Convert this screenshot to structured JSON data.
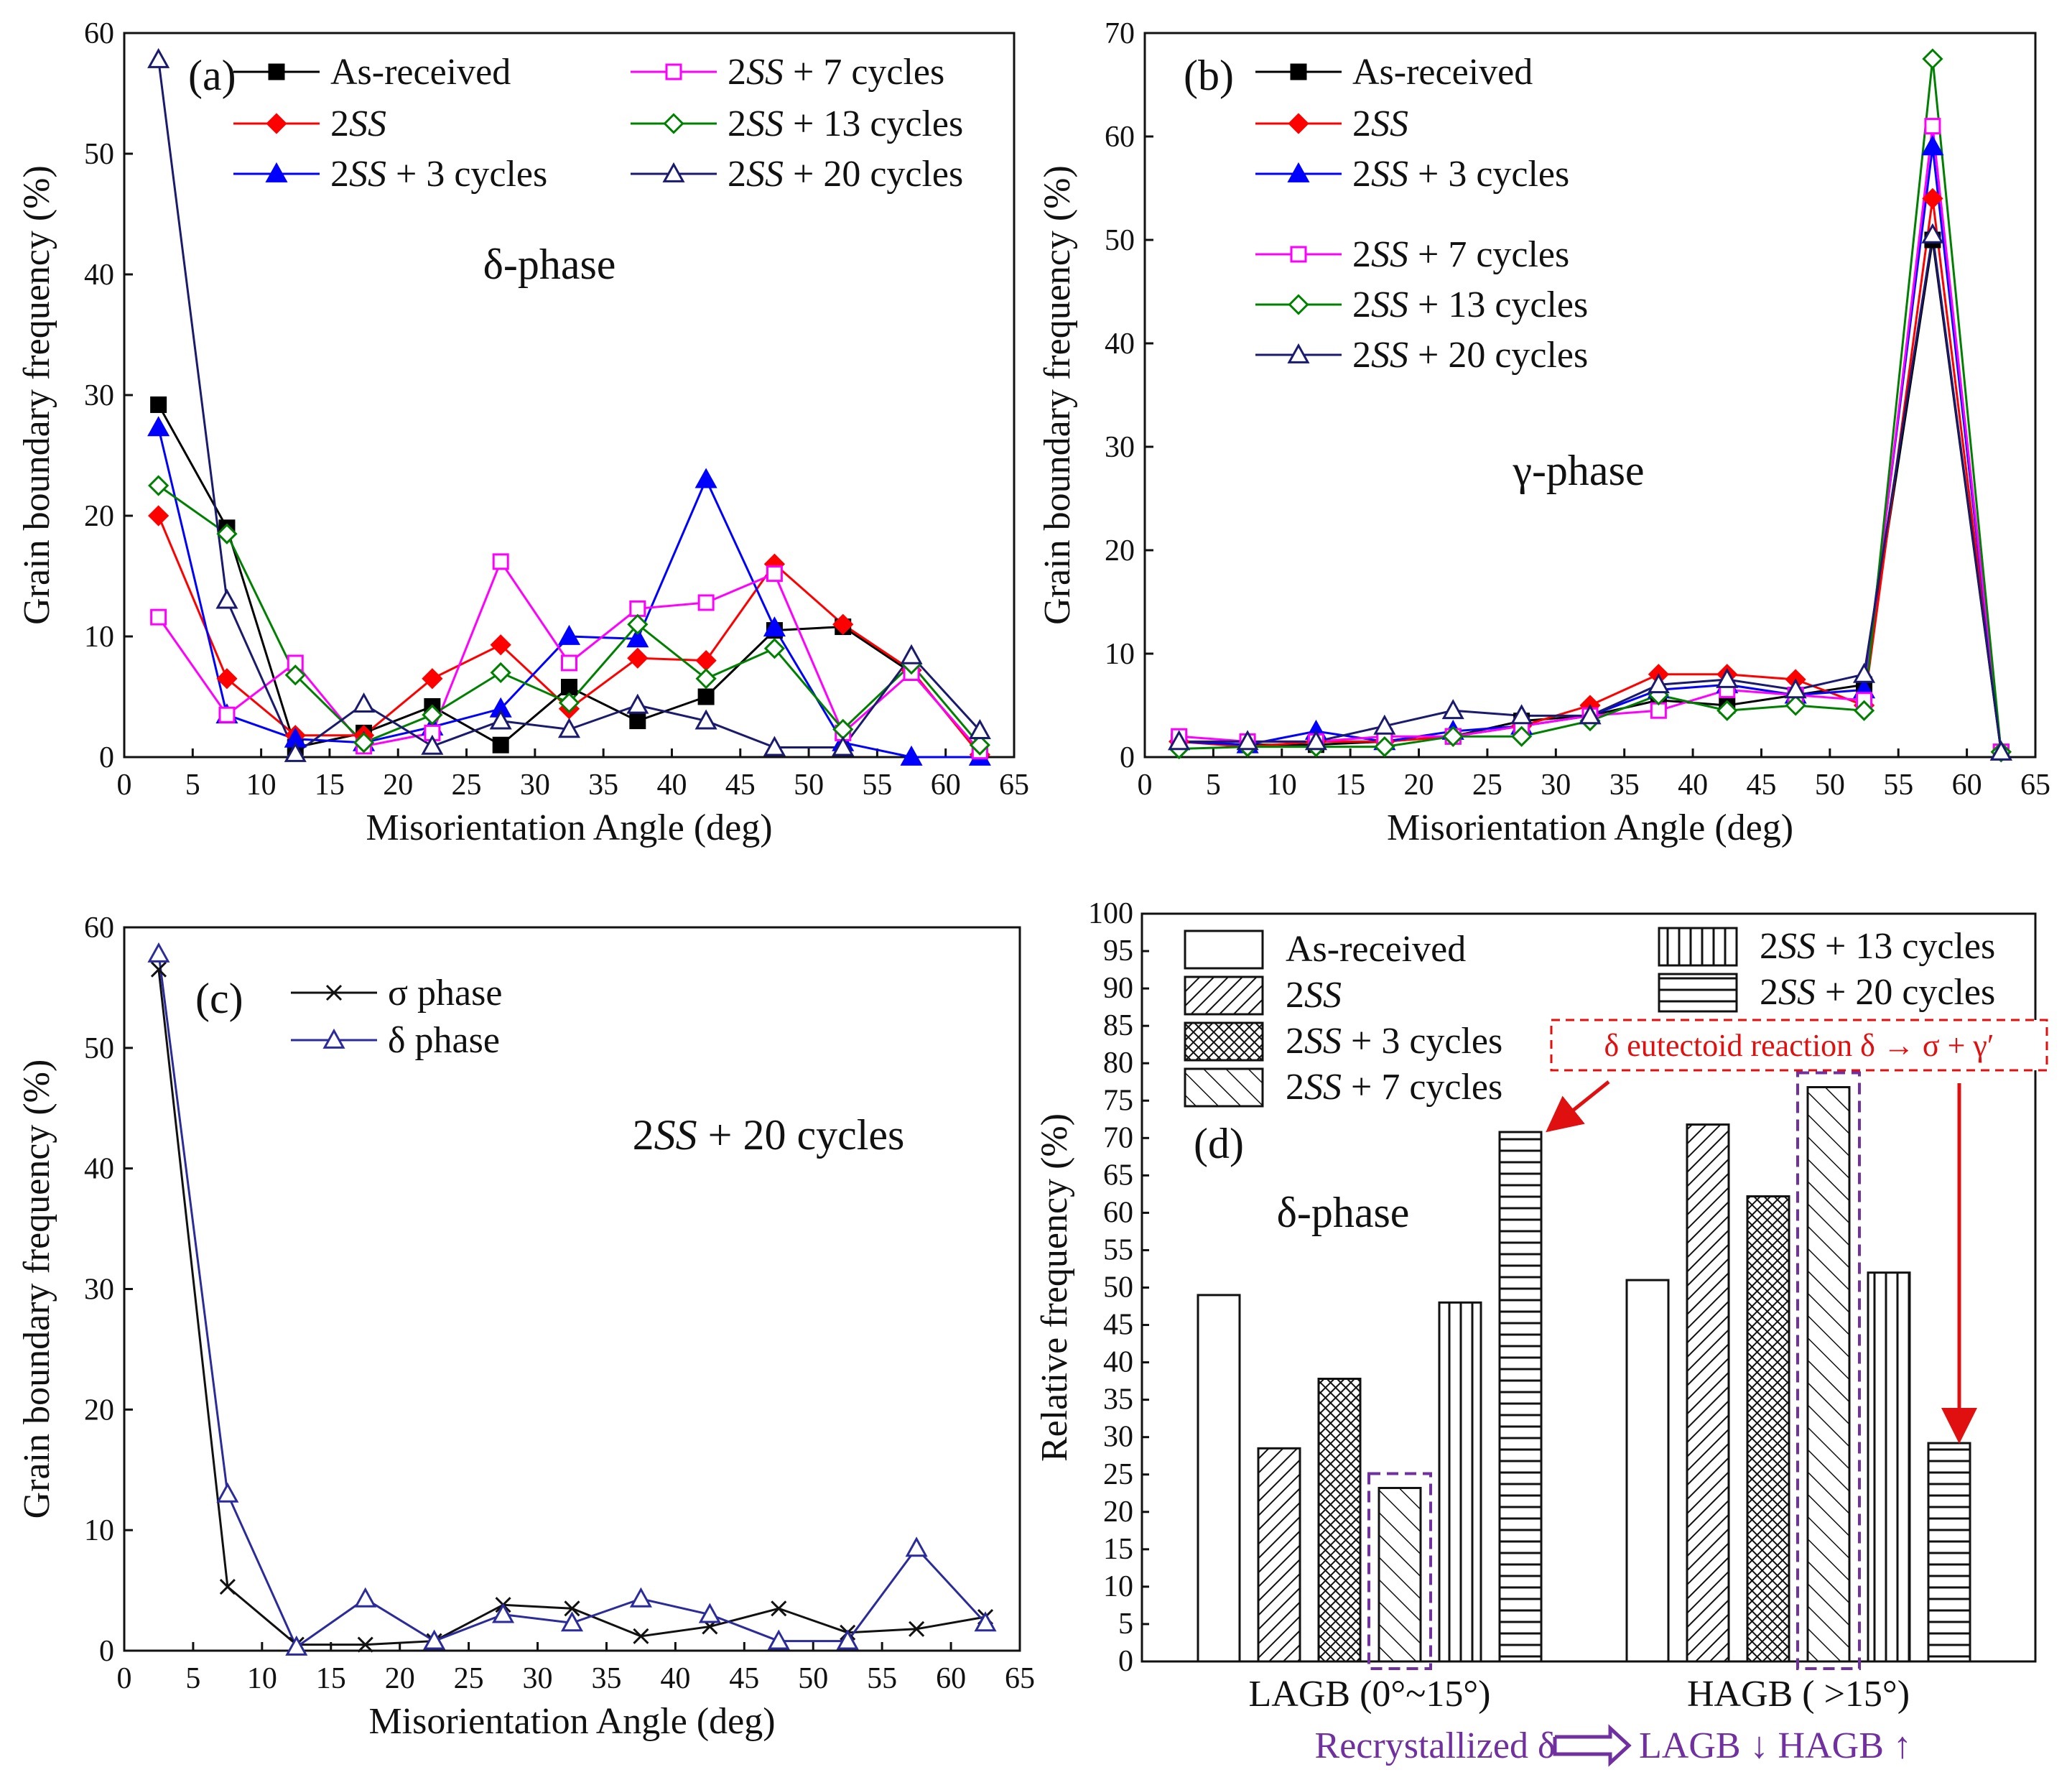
{
  "chart_data": [
    {
      "id": "a",
      "type": "line",
      "panel_label": "(a)",
      "annotation": "δ-phase",
      "xlabel": "Misorientation Angle (deg)",
      "ylabel": "Grain boundary frequency (%)",
      "xlim": [
        0,
        65
      ],
      "ylim": [
        0,
        60
      ],
      "xticks": [
        0,
        5,
        10,
        15,
        20,
        25,
        30,
        35,
        40,
        45,
        50,
        55,
        60,
        65
      ],
      "yticks": [
        0,
        10,
        20,
        30,
        40,
        50,
        60
      ],
      "x": [
        2.5,
        7.5,
        12.5,
        17.5,
        22.5,
        27.5,
        32.5,
        37.5,
        42.5,
        47.5,
        52.5,
        57.5,
        62.5
      ],
      "series": [
        {
          "name": "As-received",
          "pre": "As-received",
          "mid": "",
          "post": "",
          "color": "#000000",
          "marker": "square",
          "filled": true,
          "values": [
            29.2,
            19,
            0.8,
            2,
            4.2,
            1,
            5.8,
            3,
            5,
            10.5,
            10.8,
            7,
            0.5
          ]
        },
        {
          "name": "2SS",
          "pre": "2",
          "mid": "SS",
          "post": "",
          "color": "#ff0000",
          "marker": "diamond",
          "filled": true,
          "values": [
            20,
            6.5,
            1.8,
            1.8,
            6.5,
            9.3,
            4,
            8.2,
            8,
            16,
            11,
            7.2,
            0.2
          ]
        },
        {
          "name": "2SS + 3 cycles",
          "pre": "2",
          "mid": "SS",
          "post": " + 3 cycles",
          "color": "#0000ff",
          "marker": "triangle",
          "filled": true,
          "values": [
            27.3,
            3.5,
            1.5,
            1.2,
            2.5,
            4,
            10,
            9.8,
            23,
            10.7,
            1.2,
            0,
            0
          ]
        },
        {
          "name": "2SS + 7 cycles",
          "pre": "2",
          "mid": "SS",
          "post": " + 7 cycles",
          "color": "#ff00ff",
          "marker": "square",
          "filled": false,
          "values": [
            11.6,
            3.5,
            7.8,
            0.9,
            2,
            16.2,
            7.8,
            12.3,
            12.8,
            15.2,
            2,
            7,
            0.5
          ]
        },
        {
          "name": "2SS + 13 cycles",
          "pre": "2",
          "mid": "SS",
          "post": " + 13 cycles",
          "color": "#008000",
          "marker": "diamond",
          "filled": false,
          "values": [
            22.5,
            18.5,
            6.8,
            1.2,
            3.5,
            7,
            4.5,
            11,
            6.5,
            9,
            2.3,
            7.7,
            1
          ]
        },
        {
          "name": "2SS + 20 cycles",
          "pre": "2",
          "mid": "SS",
          "post": " + 20 cycles",
          "color": "#1a1a6e",
          "marker": "triangle",
          "filled": false,
          "values": [
            57.8,
            13,
            0.3,
            4.4,
            0.9,
            3,
            2.3,
            4.3,
            3,
            0.8,
            0.8,
            8.4,
            2.2
          ]
        }
      ]
    },
    {
      "id": "b",
      "type": "line",
      "panel_label": "(b)",
      "annotation": "γ-phase",
      "xlabel": "Misorientation Angle (deg)",
      "ylabel": "Grain boundary frequency (%)",
      "xlim": [
        0,
        65
      ],
      "ylim": [
        0,
        70
      ],
      "xticks": [
        0,
        5,
        10,
        15,
        20,
        25,
        30,
        35,
        40,
        45,
        50,
        55,
        60,
        65
      ],
      "yticks": [
        0,
        10,
        20,
        30,
        40,
        50,
        60,
        70
      ],
      "x": [
        2.5,
        7.5,
        12.5,
        17.5,
        22.5,
        27.5,
        32.5,
        37.5,
        42.5,
        47.5,
        52.5,
        57.5,
        62.5
      ],
      "series": [
        {
          "name": "As-received",
          "pre": "As-received",
          "mid": "",
          "post": "",
          "color": "#000000",
          "marker": "square",
          "filled": true,
          "values": [
            1.5,
            1.2,
            1.2,
            1.5,
            2,
            3.5,
            4,
            5.5,
            5,
            6,
            7,
            50,
            0.5
          ]
        },
        {
          "name": "2SS",
          "pre": "2",
          "mid": "SS",
          "post": "",
          "color": "#ff0000",
          "marker": "diamond",
          "filled": true,
          "values": [
            1.5,
            1,
            1.5,
            1.5,
            2,
            3,
            5,
            8,
            8,
            7.5,
            5,
            54,
            0.5
          ]
        },
        {
          "name": "2SS + 3 cycles",
          "pre": "2",
          "mid": "SS",
          "post": " +  3 cycles",
          "color": "#0000ff",
          "marker": "triangle",
          "filled": true,
          "values": [
            1.5,
            1.2,
            2.5,
            1.5,
            2.5,
            3,
            4,
            6.5,
            7,
            6,
            6.5,
            59,
            0.5
          ]
        },
        {
          "name": "2SS + 7 cycles",
          "pre": "2",
          "mid": "SS",
          "post": " +  7 cycles",
          "color": "#ff00ff",
          "marker": "square",
          "filled": false,
          "values": [
            2,
            1.5,
            1.5,
            2,
            2,
            3,
            4,
            4.5,
            6.5,
            6,
            5.5,
            61,
            0.5
          ]
        },
        {
          "name": "2SS + 13 cycles",
          "pre": "2",
          "mid": "SS",
          "post": " + 13 cycles",
          "color": "#008000",
          "marker": "diamond",
          "filled": false,
          "values": [
            0.8,
            1,
            1,
            1,
            2,
            2,
            3.5,
            6,
            4.5,
            5,
            4.5,
            67.5,
            0.5
          ]
        },
        {
          "name": "2SS + 20 cycles",
          "pre": "2",
          "mid": "SS",
          "post": " + 20 cycles",
          "color": "#1a1a6e",
          "marker": "triangle",
          "filled": false,
          "values": [
            1.5,
            1.5,
            1.5,
            3,
            4.5,
            4,
            4,
            7,
            7.5,
            6.5,
            8,
            50.5,
            0.5
          ]
        }
      ]
    },
    {
      "id": "c",
      "type": "line",
      "panel_label": "(c)",
      "annotation": {
        "pre": "2",
        "mid": "SS",
        "post": " + 20 cycles"
      },
      "xlabel": "Misorientation Angle (deg)",
      "ylabel": "Grain boundary frequency (%)",
      "xlim": [
        0,
        65
      ],
      "ylim": [
        0,
        60
      ],
      "xticks": [
        0,
        5,
        10,
        15,
        20,
        25,
        30,
        35,
        40,
        45,
        50,
        55,
        60,
        65
      ],
      "yticks": [
        0,
        10,
        20,
        30,
        40,
        50,
        60
      ],
      "x": [
        2.5,
        7.5,
        12.5,
        17.5,
        22.5,
        27.5,
        32.5,
        37.5,
        42.5,
        47.5,
        52.5,
        57.5,
        62.5
      ],
      "series": [
        {
          "name": "σ phase",
          "color": "#111111",
          "marker": "cross",
          "filled": false,
          "values": [
            56.5,
            5.3,
            0.5,
            0.5,
            0.8,
            3.8,
            3.5,
            1.2,
            2,
            3.5,
            1.5,
            1.8,
            2.8
          ]
        },
        {
          "name": "δ phase",
          "color": "#2b2b9b",
          "marker": "triangle",
          "filled": false,
          "values": [
            57.8,
            13,
            0.3,
            4.3,
            0.8,
            3,
            2.3,
            4.3,
            3,
            0.8,
            0.8,
            8.5,
            2.3
          ]
        }
      ]
    },
    {
      "id": "d",
      "type": "bar",
      "panel_label": "(d)",
      "annotation": "δ-phase",
      "ylabel": "Relative frequency (%)",
      "ylim": [
        0,
        100
      ],
      "yticks": [
        0,
        5,
        10,
        15,
        20,
        25,
        30,
        35,
        40,
        45,
        50,
        55,
        60,
        65,
        70,
        75,
        80,
        85,
        90,
        95,
        100
      ],
      "categories": [
        "LAGB (0°~15°)",
        "HAGB ( >15°)"
      ],
      "series": [
        {
          "name": "As-received",
          "pre": "As-received",
          "mid": "",
          "post": "",
          "pattern": "none",
          "values": [
            49,
            51
          ]
        },
        {
          "name": "2SS",
          "pre": "2",
          "mid": "SS",
          "post": "",
          "pattern": "diag",
          "values": [
            28.5,
            71.8
          ]
        },
        {
          "name": "2SS + 3 cycles",
          "pre": "2",
          "mid": "SS",
          "post": " + 3 cycles",
          "pattern": "cross",
          "values": [
            37.8,
            62.2
          ]
        },
        {
          "name": "2SS + 7 cycles",
          "pre": "2",
          "mid": "SS",
          "post": " + 7 cycles",
          "pattern": "wide-diag",
          "values": [
            23.2,
            76.8
          ]
        },
        {
          "name": "2SS + 13 cycles",
          "pre": "2",
          "mid": "SS",
          "post": " + 13 cycles",
          "pattern": "vertical",
          "values": [
            48,
            52
          ]
        },
        {
          "name": "2SS + 20 cycles",
          "pre": "2",
          "mid": "SS",
          "post": " + 20 cycles",
          "pattern": "horizontal",
          "values": [
            70.8,
            29.2
          ]
        }
      ],
      "callout": "δ eutectoid reaction  δ → σ + γ′",
      "footer": {
        "left": "Recrystallized δ",
        "right": "LAGB ↓ HAGB ↑"
      }
    }
  ]
}
